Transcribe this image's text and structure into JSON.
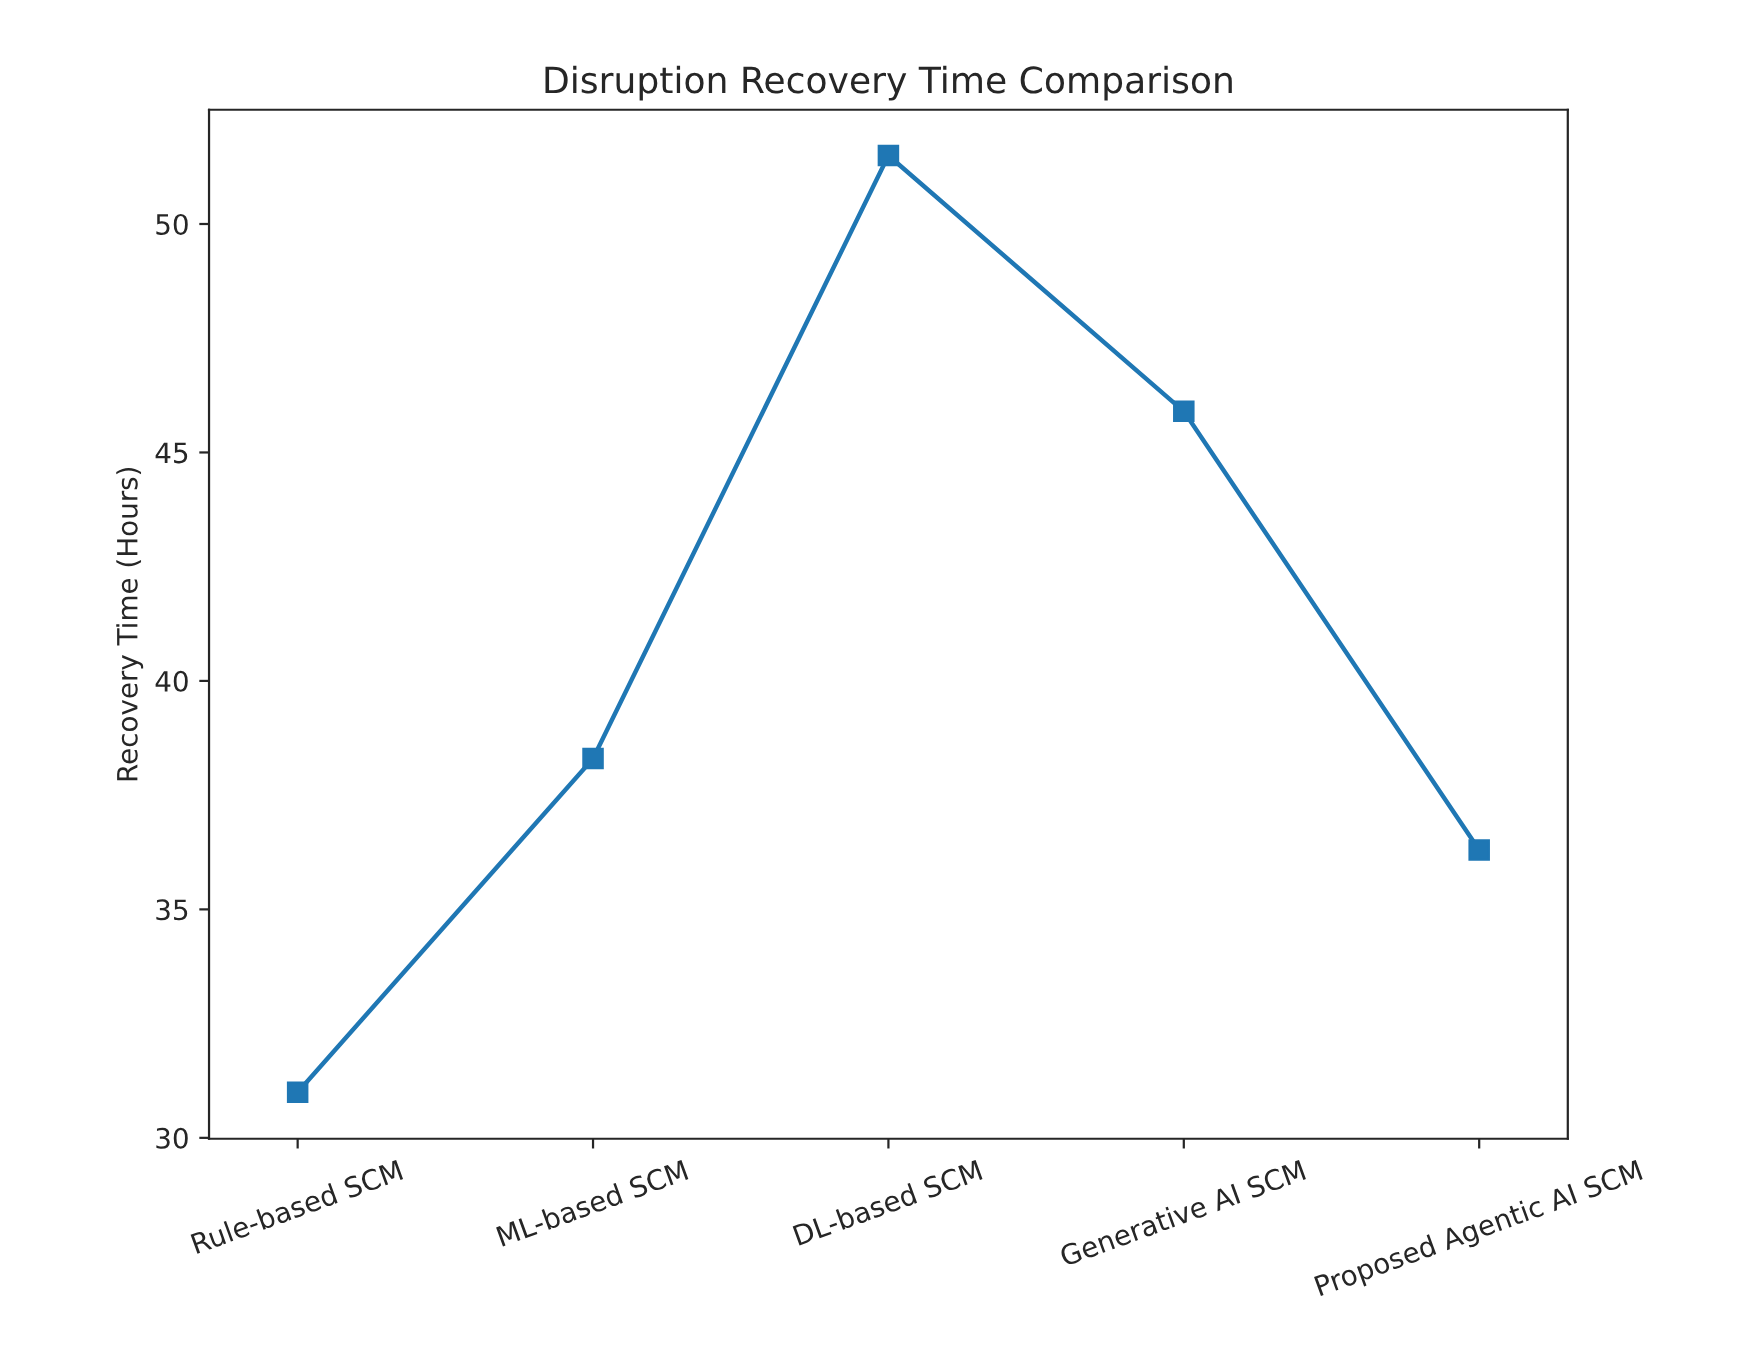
{
  "chart_data": {
    "type": "line",
    "title": "Disruption Recovery Time Comparison",
    "ylabel": "Recovery Time (Hours)",
    "categories": [
      "Rule-based SCM",
      "ML-based SCM",
      "DL-based SCM",
      "Generative AI SCM",
      "Proposed Agentic AI SCM"
    ],
    "series": [
      {
        "color": "#1f77b4",
        "values": [
          31.0,
          38.3,
          51.5,
          45.9,
          36.3
        ]
      }
    ],
    "ylim": [
      29.98,
      52.5
    ],
    "yticks": [
      30,
      35,
      40,
      45,
      50
    ],
    "marker": "square",
    "line_style": "solid",
    "grid": false,
    "legend": false
  }
}
